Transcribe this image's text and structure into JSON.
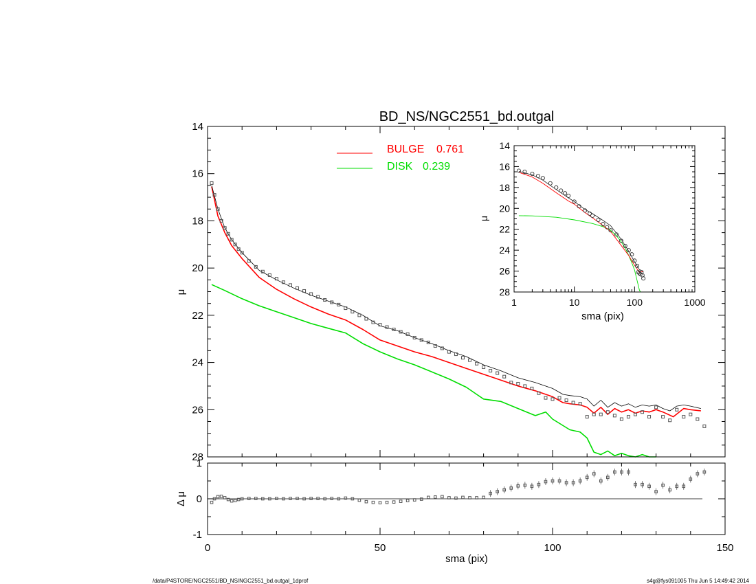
{
  "footer": {
    "path": "/data/P4STORE/NGC2551/BD_NS/NGC2551_bd.outgal_1dprof",
    "stamp": "s4g@fys091005  Thu Jun  5 14:49:42 2014"
  },
  "colors": {
    "bulge": "#ff0000",
    "disk": "#00dd00",
    "model": "#000000",
    "data": "#555555"
  },
  "chart_data": [
    {
      "type": "scatter",
      "title": "BD_NS/NGC2551_bd.outgal",
      "xlabel": "",
      "ylabel": "μ",
      "xlim": [
        0,
        150
      ],
      "ylim": [
        28,
        14
      ],
      "y_ticks": [
        "14",
        "16",
        "18",
        "20",
        "22",
        "24",
        "26",
        "28"
      ],
      "grid": false,
      "legend": {
        "placement": "top-center",
        "entries": [
          {
            "label": "BULGE",
            "value": "0.761",
            "color": "#ff0000"
          },
          {
            "label": "DISK",
            "value": "0.239",
            "color": "#00dd00"
          }
        ]
      },
      "series": [
        {
          "name": "data",
          "style": "open squares",
          "x": [
            1.2,
            2,
            3,
            4,
            5,
            6,
            7,
            8,
            9,
            10,
            12,
            14,
            16,
            18,
            20,
            22,
            24,
            26,
            28,
            30,
            32,
            34,
            36,
            38,
            40,
            42,
            44,
            46,
            48,
            50,
            52,
            54,
            56,
            58,
            60,
            62,
            64,
            66,
            68,
            70,
            72,
            74,
            76,
            78,
            80,
            82,
            84,
            86,
            88,
            90,
            92,
            94,
            96,
            98,
            100,
            102,
            104,
            106,
            108,
            110,
            112,
            114,
            116,
            118,
            120,
            122,
            124,
            126,
            128,
            130,
            132,
            134,
            136,
            138,
            140,
            142,
            144
          ],
          "y": [
            16.4,
            16.9,
            17.5,
            18.0,
            18.3,
            18.55,
            18.8,
            19.0,
            19.2,
            19.35,
            19.7,
            19.95,
            20.15,
            20.3,
            20.45,
            20.6,
            20.72,
            20.85,
            20.97,
            21.1,
            21.22,
            21.35,
            21.45,
            21.55,
            21.7,
            21.85,
            22.0,
            22.15,
            22.3,
            22.4,
            22.5,
            22.6,
            22.7,
            22.8,
            22.95,
            23.05,
            23.15,
            23.3,
            23.4,
            23.55,
            23.65,
            23.8,
            23.9,
            24.05,
            24.2,
            24.35,
            24.45,
            24.6,
            24.85,
            24.9,
            25.0,
            25.1,
            25.3,
            25.5,
            25.55,
            25.5,
            25.6,
            25.7,
            25.75,
            26.3,
            26.2,
            26.2,
            26.1,
            26.25,
            26.4,
            26.3,
            26.2,
            26.1,
            26.3,
            25.9,
            26.3,
            26.45,
            26.0,
            26.3,
            26.2,
            26.4,
            26.7
          ]
        },
        {
          "name": "model",
          "style": "thin black line",
          "x": [
            1.2,
            3,
            5,
            7,
            10,
            15,
            20,
            25,
            30,
            35,
            40,
            45,
            50,
            55,
            60,
            65,
            70,
            75,
            80,
            85,
            90,
            95,
            100,
            103,
            105,
            108,
            110,
            112,
            114,
            116,
            118,
            120,
            122,
            124,
            126,
            128,
            130,
            132,
            134,
            136,
            138,
            140,
            143
          ],
          "y": [
            16.5,
            17.5,
            18.3,
            18.8,
            19.35,
            20.1,
            20.5,
            20.85,
            21.15,
            21.4,
            21.65,
            22.0,
            22.45,
            22.65,
            22.95,
            23.2,
            23.5,
            23.75,
            24.1,
            24.35,
            24.65,
            24.85,
            25.1,
            25.35,
            25.4,
            25.45,
            25.55,
            25.85,
            25.6,
            25.9,
            25.7,
            25.85,
            25.75,
            25.9,
            25.8,
            25.85,
            25.8,
            25.95,
            26.05,
            25.85,
            25.8,
            25.85,
            25.95
          ]
        },
        {
          "name": "BULGE",
          "style": "red line",
          "x": [
            1.2,
            3,
            5,
            7,
            10,
            15,
            20,
            25,
            30,
            35,
            40,
            45,
            50,
            55,
            60,
            65,
            70,
            75,
            80,
            85,
            90,
            95,
            100,
            103,
            105,
            108,
            110,
            112,
            114,
            116,
            118,
            120,
            122,
            124,
            126,
            128,
            130,
            132,
            135,
            138,
            140,
            143
          ],
          "y": [
            16.55,
            17.8,
            18.5,
            19.05,
            19.6,
            20.4,
            20.9,
            21.3,
            21.65,
            21.95,
            22.2,
            22.6,
            23.05,
            23.3,
            23.55,
            23.75,
            24.0,
            24.25,
            24.5,
            24.75,
            25.0,
            25.2,
            25.45,
            25.7,
            25.75,
            25.8,
            25.9,
            26.15,
            25.9,
            26.2,
            25.95,
            26.1,
            26.0,
            26.15,
            26.05,
            26.1,
            26.0,
            26.1,
            26.3,
            25.95,
            26.0,
            26.05
          ]
        },
        {
          "name": "DISK",
          "style": "green line",
          "x": [
            1.2,
            5,
            10,
            15,
            20,
            25,
            30,
            35,
            40,
            45,
            50,
            55,
            60,
            65,
            70,
            75,
            78,
            80,
            85,
            90,
            95,
            98,
            100,
            105,
            108,
            110,
            112,
            114,
            116,
            118,
            120,
            122,
            124,
            126,
            128,
            130
          ],
          "y": [
            20.7,
            20.95,
            21.3,
            21.6,
            21.85,
            22.1,
            22.35,
            22.55,
            22.75,
            23.2,
            23.55,
            23.85,
            24.1,
            24.4,
            24.7,
            25.05,
            25.35,
            25.55,
            25.65,
            25.95,
            26.25,
            26.1,
            26.4,
            26.85,
            26.95,
            27.2,
            27.8,
            27.9,
            27.75,
            27.95,
            27.85,
            27.95,
            28.1,
            27.9,
            28.0,
            28.05
          ]
        }
      ]
    },
    {
      "type": "scatter",
      "title": "",
      "xlabel": "sma (pix)",
      "ylabel": "Δ μ",
      "xlim": [
        0,
        150
      ],
      "ylim": [
        -1,
        1
      ],
      "x_ticks": [
        "0",
        "50",
        "100",
        "150"
      ],
      "y_ticks": [
        "1",
        "0",
        "-1"
      ],
      "zero_line": true,
      "series": [
        {
          "name": "residuals",
          "style": "open squares with error bars",
          "x": [
            1.2,
            2,
            3,
            4,
            5,
            6,
            7,
            8,
            9,
            10,
            12,
            14,
            16,
            18,
            20,
            22,
            24,
            26,
            28,
            30,
            32,
            34,
            36,
            38,
            40,
            42,
            44,
            46,
            48,
            50,
            52,
            54,
            56,
            58,
            60,
            62,
            64,
            66,
            68,
            70,
            72,
            74,
            76,
            78,
            80,
            82,
            84,
            86,
            88,
            90,
            92,
            94,
            96,
            98,
            100,
            102,
            104,
            106,
            108,
            110,
            112,
            114,
            116,
            118,
            120,
            122,
            124,
            126,
            128,
            130,
            132,
            134,
            136,
            138,
            140,
            142,
            144
          ],
          "y": [
            -0.1,
            0.0,
            0.06,
            0.07,
            0.03,
            -0.02,
            -0.06,
            -0.05,
            -0.02,
            0.0,
            0.01,
            0.01,
            0.0,
            0.0,
            0.01,
            0.0,
            0.01,
            0.01,
            0.0,
            0.01,
            0.01,
            0.0,
            0.01,
            0.0,
            0.02,
            0.0,
            -0.04,
            -0.08,
            -0.1,
            -0.11,
            -0.1,
            -0.09,
            -0.07,
            -0.05,
            -0.03,
            -0.01,
            0.04,
            0.05,
            0.06,
            0.03,
            0.02,
            0.04,
            0.03,
            0.03,
            0.04,
            0.15,
            0.2,
            0.25,
            0.3,
            0.36,
            0.38,
            0.35,
            0.4,
            0.48,
            0.5,
            0.5,
            0.45,
            0.45,
            0.5,
            0.6,
            0.7,
            0.5,
            0.6,
            0.75,
            0.75,
            0.75,
            0.4,
            0.4,
            0.35,
            0.2,
            0.38,
            0.25,
            0.35,
            0.35,
            0.55,
            0.7,
            0.75
          ]
        }
      ]
    },
    {
      "type": "scatter",
      "title": "",
      "xlabel": "sma (pix)",
      "ylabel": "μ",
      "xscale": "log",
      "xlim": [
        1,
        1000
      ],
      "ylim": [
        28,
        14
      ],
      "x_ticks": [
        "1",
        "10",
        "100",
        "1000"
      ],
      "y_ticks": [
        "14",
        "16",
        "18",
        "20",
        "22",
        "24",
        "26",
        "28"
      ],
      "series": [
        {
          "name": "data",
          "style": "open circles",
          "x": [
            1.2,
            1.5,
            2,
            2.5,
            3,
            4,
            5,
            6,
            7,
            8,
            10,
            12,
            15,
            18,
            20,
            25,
            30,
            35,
            40,
            50,
            60,
            70,
            80,
            90,
            100,
            110,
            115,
            120,
            125,
            130,
            135,
            140
          ],
          "y": [
            16.4,
            16.5,
            16.7,
            16.9,
            17.1,
            17.6,
            18.0,
            18.3,
            18.55,
            18.8,
            19.35,
            19.8,
            20.2,
            20.5,
            20.7,
            21.1,
            21.5,
            21.8,
            22.1,
            22.5,
            23.1,
            23.6,
            24.0,
            24.4,
            25.0,
            25.5,
            26.1,
            26.2,
            26.3,
            26.1,
            26.4,
            26.7
          ]
        },
        {
          "name": "BULGE",
          "style": "red line",
          "x": [
            1.2,
            2,
            3,
            5,
            8,
            10,
            15,
            20,
            30,
            40,
            60,
            80,
            100,
            120,
            140
          ],
          "y": [
            16.55,
            17.0,
            17.6,
            18.5,
            19.3,
            19.6,
            20.4,
            20.9,
            21.65,
            22.2,
            23.55,
            24.5,
            25.45,
            26.1,
            26.05
          ]
        },
        {
          "name": "model",
          "style": "thin black line",
          "x": [
            1.2,
            2,
            3,
            5,
            8,
            10,
            15,
            20,
            30,
            40,
            60,
            80,
            100,
            120,
            140
          ],
          "y": [
            16.45,
            16.8,
            17.3,
            18.2,
            19.0,
            19.35,
            20.1,
            20.5,
            21.15,
            21.65,
            22.95,
            24.1,
            25.1,
            25.85,
            26.0
          ]
        },
        {
          "name": "DISK",
          "style": "green line",
          "x": [
            1.2,
            2,
            5,
            10,
            20,
            30,
            40,
            50,
            60,
            70,
            80,
            90,
            100,
            110,
            120,
            125,
            130
          ],
          "y": [
            20.7,
            20.72,
            20.85,
            21.1,
            21.45,
            21.75,
            22.1,
            22.6,
            23.2,
            23.8,
            24.5,
            25.2,
            25.9,
            26.9,
            27.8,
            28.0,
            28.1
          ]
        }
      ]
    }
  ]
}
